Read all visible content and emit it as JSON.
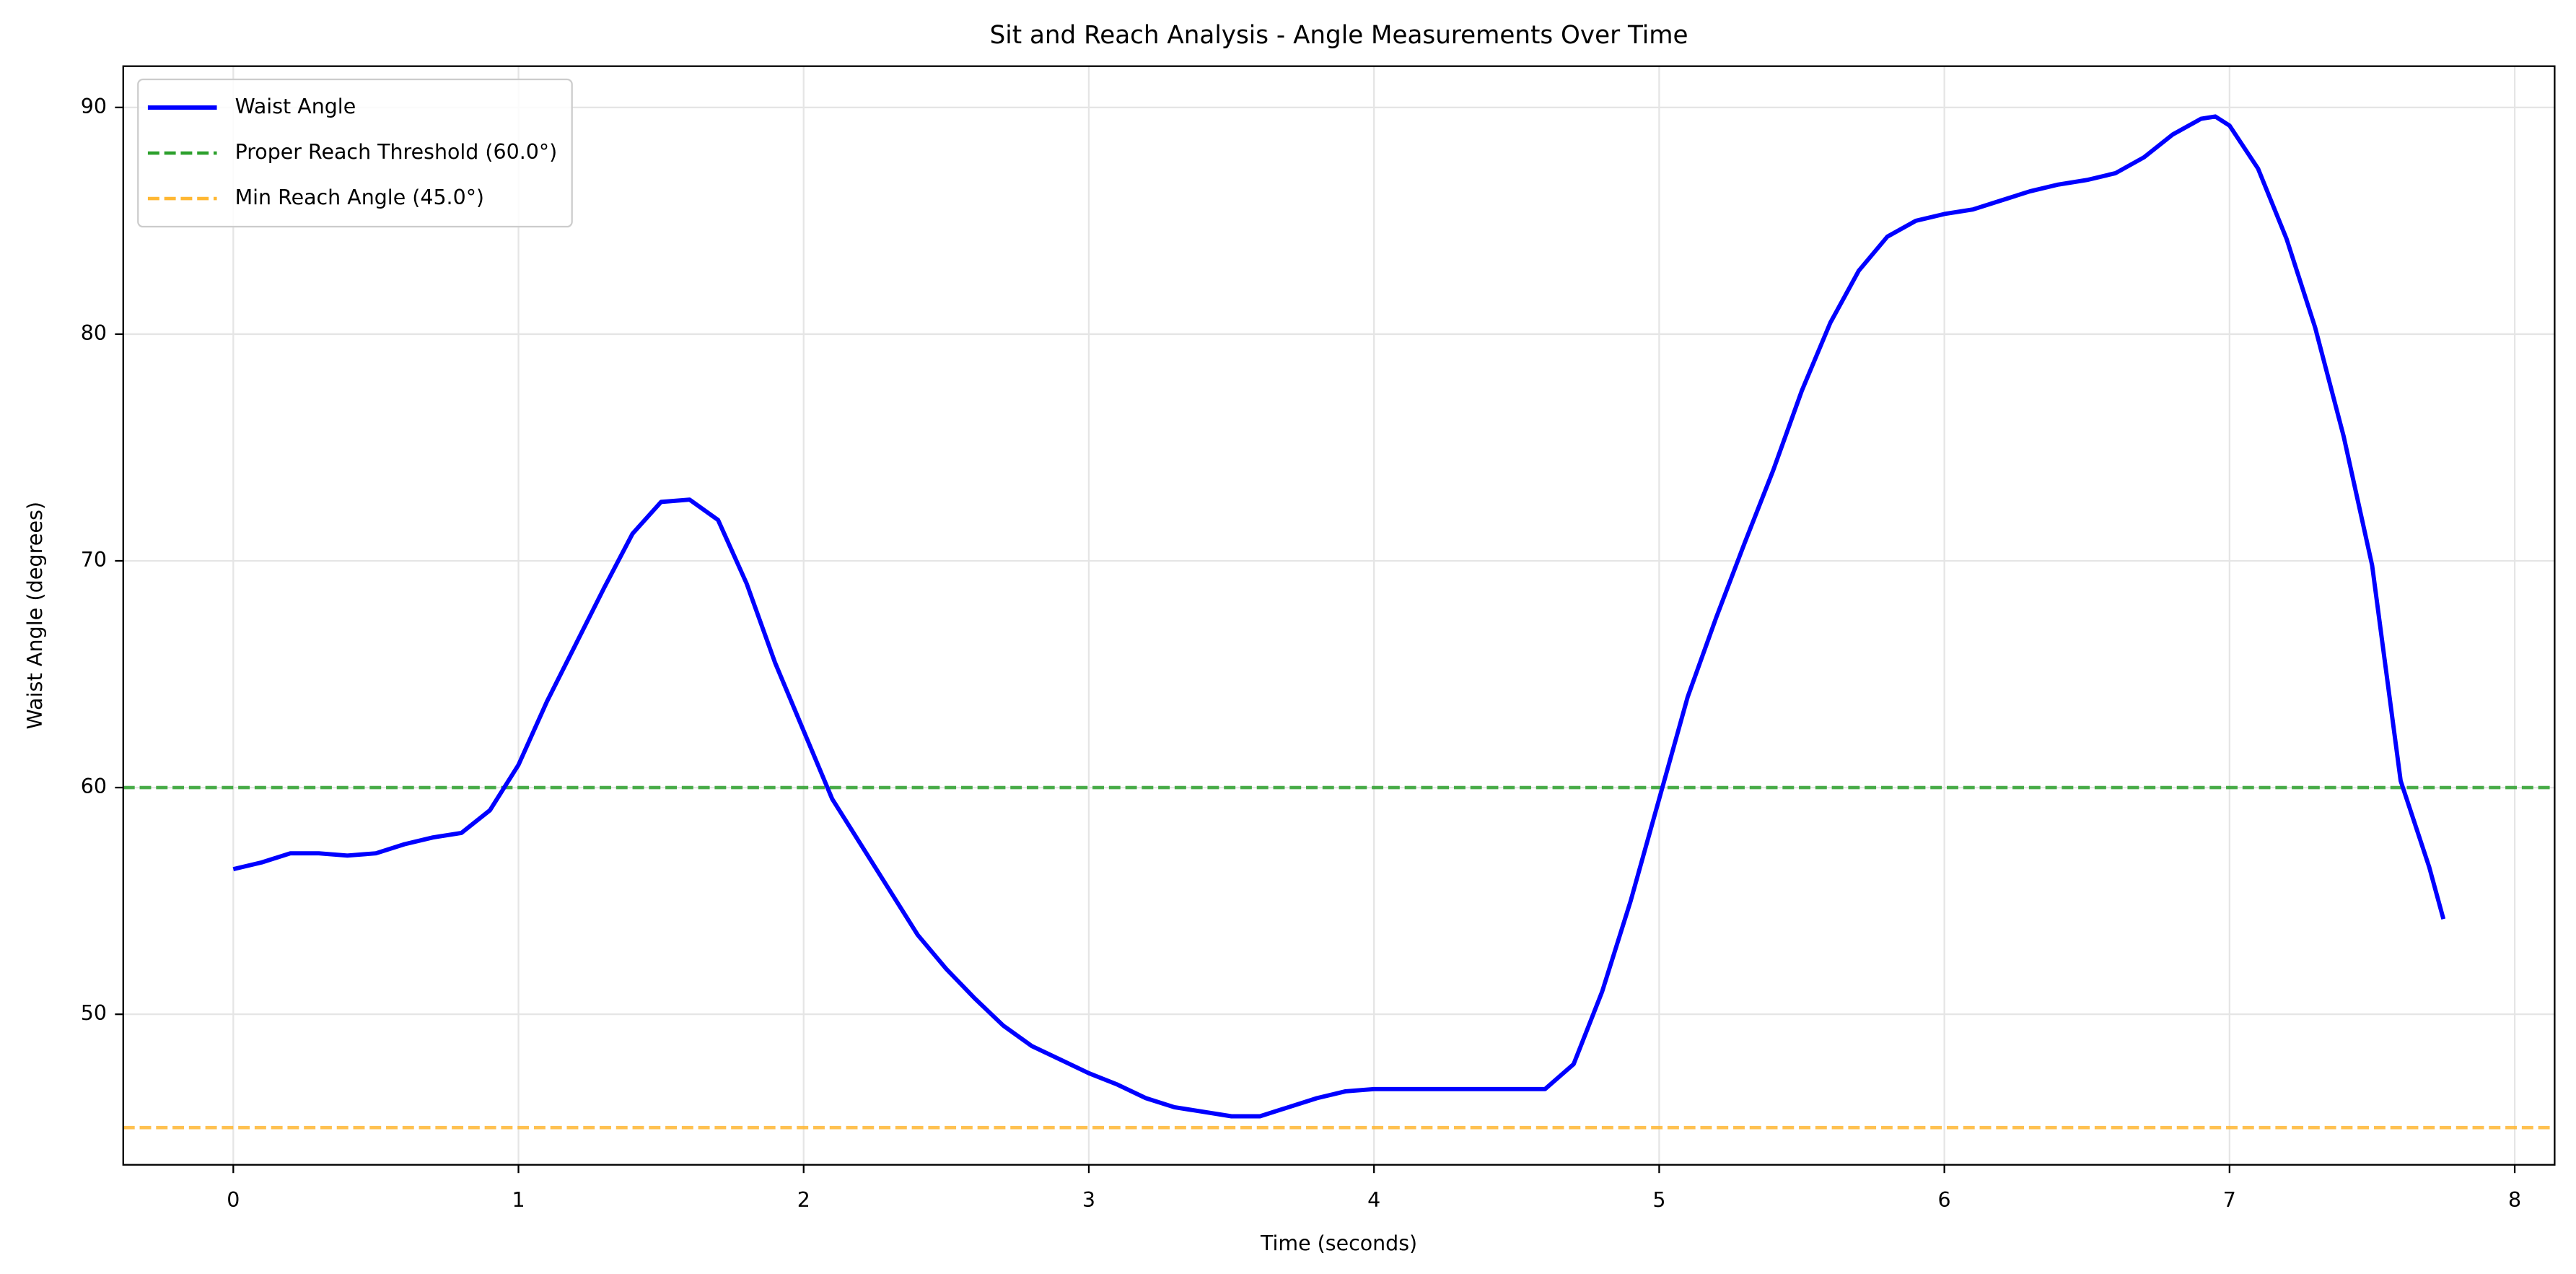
{
  "chart_data": {
    "type": "line",
    "title": "Sit and Reach Analysis - Angle Measurements Over Time",
    "xlabel": "Time (seconds)",
    "ylabel": "Waist Angle (degrees)",
    "x": [
      0,
      0.1,
      0.2,
      0.3,
      0.4,
      0.5,
      0.6,
      0.7,
      0.8,
      0.9,
      1.0,
      1.1,
      1.2,
      1.3,
      1.4,
      1.5,
      1.6,
      1.7,
      1.8,
      1.9,
      2.0,
      2.1,
      2.2,
      2.3,
      2.4,
      2.5,
      2.6,
      2.7,
      2.8,
      2.9,
      3.0,
      3.1,
      3.2,
      3.3,
      3.4,
      3.5,
      3.6,
      3.7,
      3.8,
      3.9,
      4.0,
      4.1,
      4.2,
      4.3,
      4.4,
      4.5,
      4.6,
      4.7,
      4.8,
      4.9,
      5.0,
      5.1,
      5.2,
      5.3,
      5.4,
      5.5,
      5.6,
      5.7,
      5.8,
      5.9,
      6.0,
      6.1,
      6.2,
      6.3,
      6.4,
      6.5,
      6.6,
      6.7,
      6.8,
      6.9,
      6.95,
      7.0,
      7.1,
      7.2,
      7.3,
      7.4,
      7.5,
      7.6,
      7.7,
      7.75
    ],
    "series": [
      {
        "name": "Waist Angle",
        "color": "#0000ff",
        "values": [
          56.4,
          56.7,
          57.1,
          57.1,
          57.0,
          57.1,
          57.5,
          57.8,
          58.0,
          59.0,
          61.0,
          63.8,
          66.3,
          68.8,
          71.2,
          72.6,
          72.7,
          71.8,
          69.0,
          65.5,
          62.5,
          59.5,
          57.5,
          55.5,
          53.5,
          52.0,
          50.7,
          49.5,
          48.6,
          48.0,
          47.4,
          46.9,
          46.3,
          45.9,
          45.7,
          45.5,
          45.5,
          45.9,
          46.3,
          46.6,
          46.7,
          46.7,
          46.7,
          46.7,
          46.7,
          46.7,
          46.7,
          47.8,
          51.0,
          55.0,
          59.5,
          64.0,
          67.5,
          70.8,
          74.0,
          77.5,
          80.5,
          82.8,
          84.3,
          85.0,
          85.3,
          85.5,
          85.9,
          86.3,
          86.6,
          86.8,
          87.1,
          87.8,
          88.8,
          89.5,
          89.6,
          89.2,
          87.3,
          84.2,
          80.3,
          75.5,
          69.8,
          60.3,
          56.5,
          54.2
        ]
      }
    ],
    "hlines": [
      {
        "name": "Proper Reach Threshold (60.0°)",
        "color": "#2ca02c",
        "value": 60
      },
      {
        "name": "Min Reach Angle (45.0°)",
        "color": "#ffb732",
        "value": 45
      }
    ],
    "xlim": [
      -0.386,
      8.14
    ],
    "ylim": [
      43.36,
      91.82
    ],
    "xticks": [
      0,
      1,
      2,
      3,
      4,
      5,
      6,
      7,
      8
    ],
    "yticks": [
      50,
      60,
      70,
      80,
      90
    ],
    "grid": true,
    "legend": "upper left"
  }
}
